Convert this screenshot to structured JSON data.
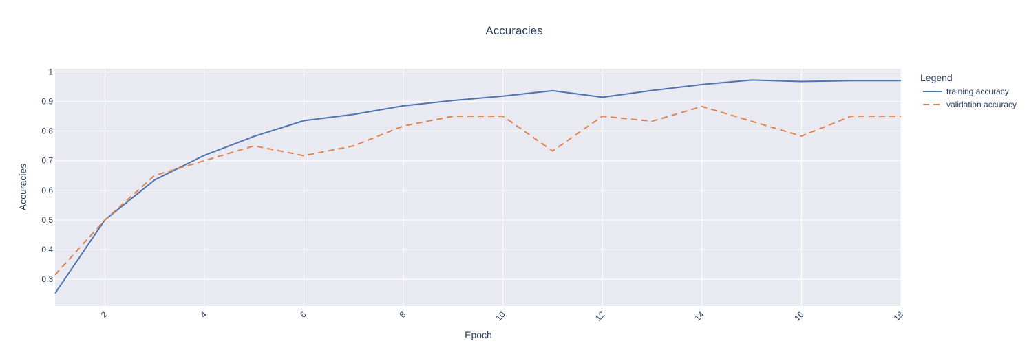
{
  "chart_data": {
    "type": "line",
    "title": "Accuracies",
    "xlabel": "Epoch",
    "ylabel": "Accuracies",
    "xlim": [
      1,
      18
    ],
    "ylim": [
      0.21,
      1.01
    ],
    "xticks": [
      2,
      4,
      6,
      8,
      10,
      12,
      14,
      16,
      18
    ],
    "yticks": [
      0.3,
      0.4,
      0.5,
      0.6,
      0.7,
      0.8,
      0.9,
      1
    ],
    "grid": true,
    "legend": {
      "title": "Legend",
      "placement": "right"
    },
    "x": [
      1,
      2,
      3,
      4,
      5,
      6,
      7,
      8,
      9,
      10,
      11,
      12,
      13,
      14,
      15,
      16,
      17,
      18
    ],
    "series": [
      {
        "name": "training accuracy",
        "color": "#4c72b0",
        "dash": "solid",
        "values": [
          0.253,
          0.5,
          0.635,
          0.718,
          0.782,
          0.835,
          0.856,
          0.885,
          0.903,
          0.918,
          0.936,
          0.914,
          0.937,
          0.957,
          0.972,
          0.967,
          0.97,
          0.97
        ]
      },
      {
        "name": "validation accuracy",
        "color": "#dd8452",
        "dash": "dash",
        "values": [
          0.315,
          0.5,
          0.65,
          0.7,
          0.75,
          0.717,
          0.75,
          0.817,
          0.85,
          0.85,
          0.733,
          0.85,
          0.833,
          0.883,
          0.833,
          0.783,
          0.85,
          0.85
        ]
      }
    ]
  }
}
